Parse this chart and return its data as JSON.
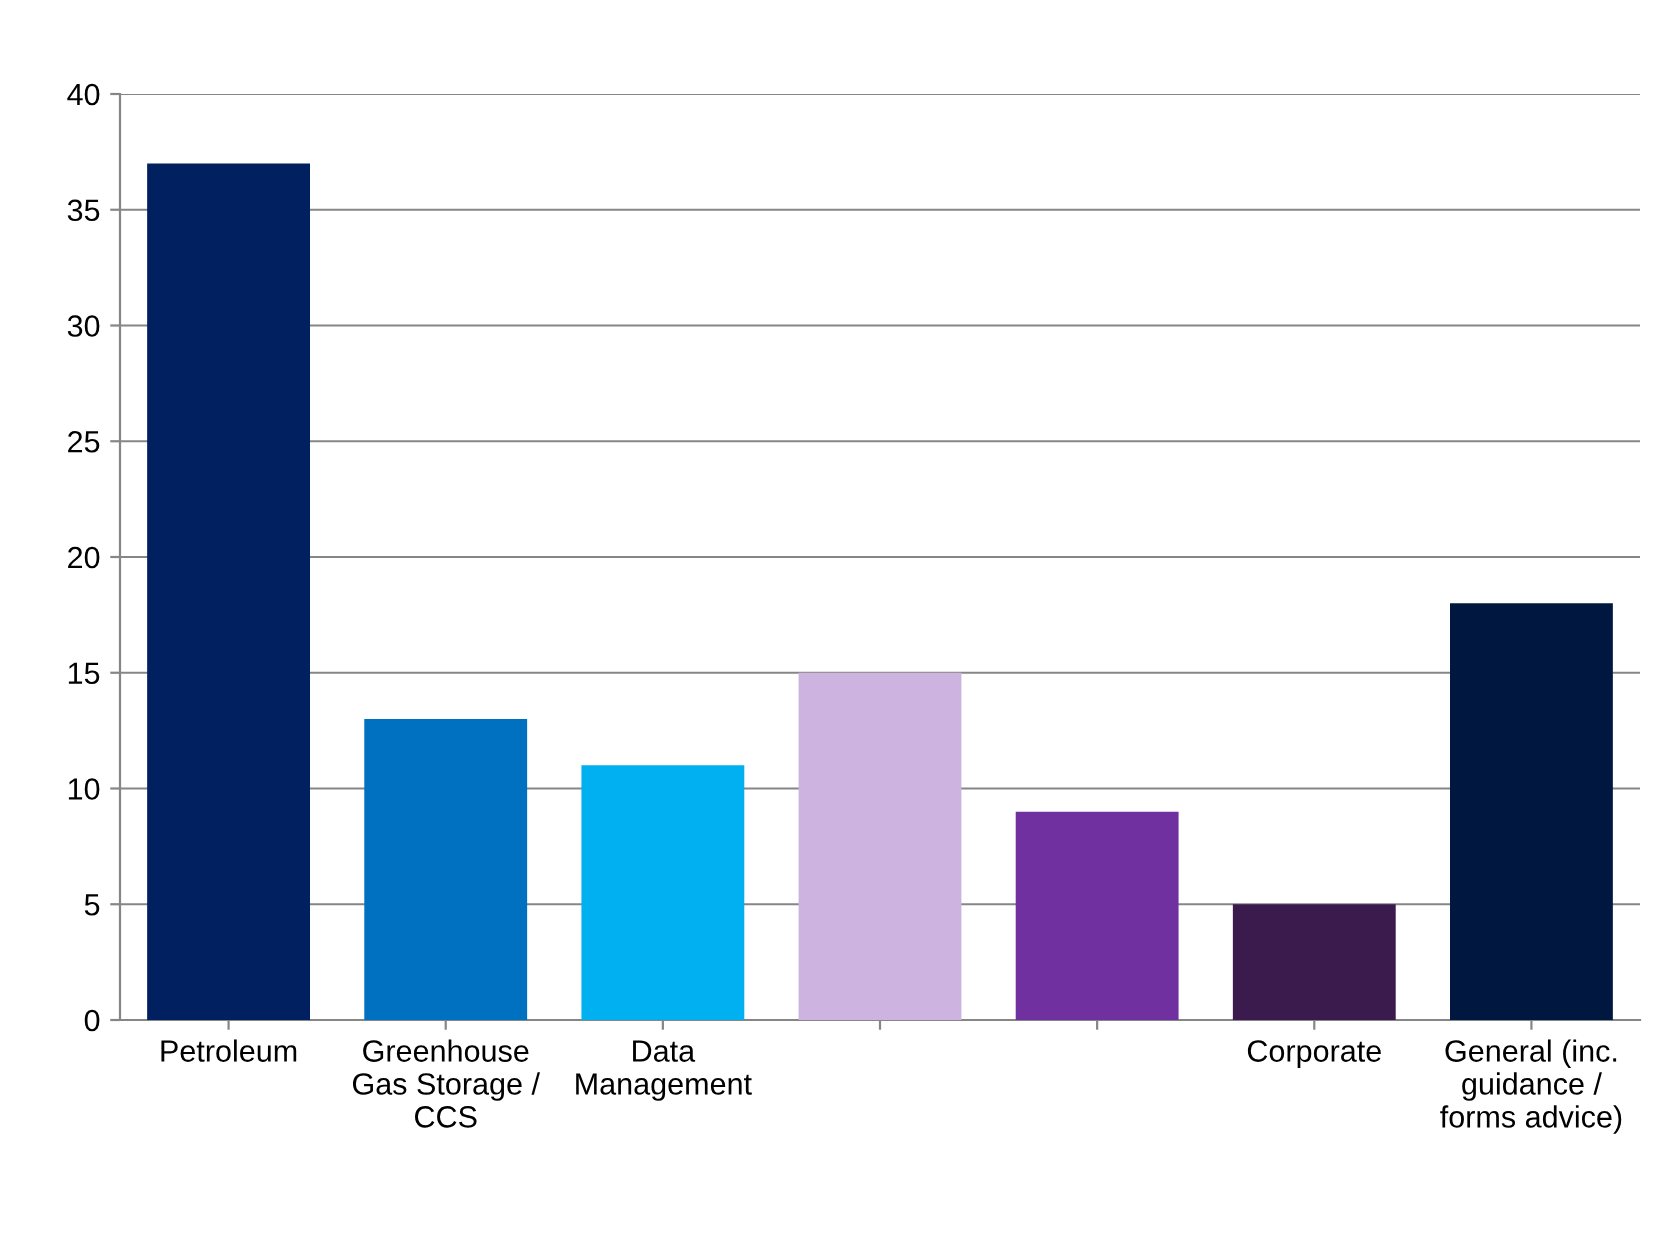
{
  "chart_data": {
    "type": "bar",
    "categories": [
      "Petroleum",
      "Greenhouse Gas Storage / CCS",
      "Data Management",
      null,
      null,
      "Corporate",
      "General (inc. guidance / forms advice)"
    ],
    "values": [
      37,
      13,
      11,
      15,
      9,
      5,
      18
    ],
    "colors": [
      "#002060",
      "#0070c0",
      "#00b0f0",
      "#cdb4e0",
      "#7030a0",
      "#3b1a4e",
      "#001840"
    ],
    "ylim": [
      0,
      40
    ],
    "yticks": [
      0,
      5,
      10,
      15,
      20,
      25,
      30,
      35,
      40
    ],
    "grid": "y",
    "legend": false
  }
}
